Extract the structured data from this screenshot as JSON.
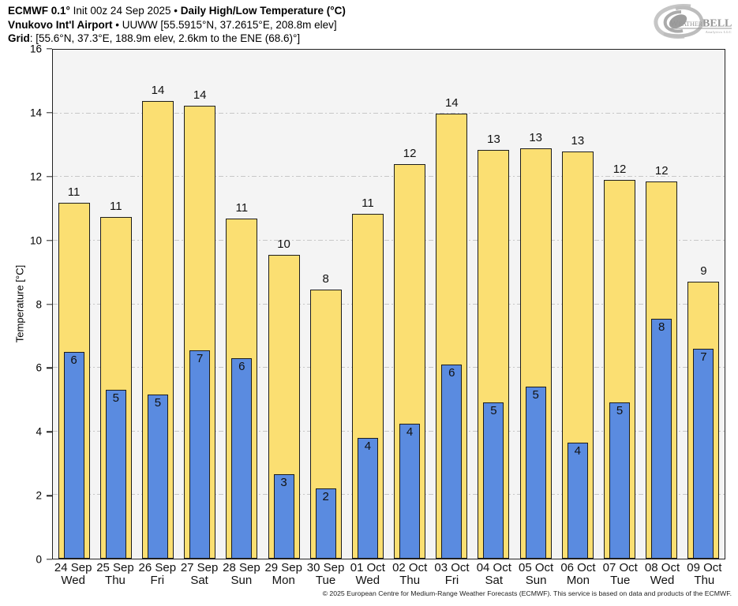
{
  "header": {
    "title_model": "ECMWF 0.1°",
    "title_mid": " Init 00z 24 Sep 2025 • ",
    "title_product": "Daily High/Low Temperature (°C)",
    "station_name": "Vnukovo Int'l Airport",
    "station_rest": " • UUWW [55.5915°N, 37.2615°E, 208.8m elev]",
    "grid_label": "Grid",
    "grid_rest": ": [55.6°N, 37.3°E, 188.9m elev, 2.6km to the ENE (68.6)°]"
  },
  "logo": {
    "weather": "Weather",
    "bell": "BELL",
    "sub": "Analytics LLC"
  },
  "footer": {
    "copyright": "© 2025 European Centre for Medium-Range Weather Forecasts (ECMWF). This service is based on data and products of the ECMWF."
  },
  "colors": {
    "high_fill": "#FBDF72",
    "low_fill": "#5A8BE0",
    "bar_border": "#1c1c1c",
    "plot_bg": "#f4f4f4",
    "gridline": "#c7c7c7"
  },
  "chart_data": {
    "type": "bar",
    "title": "Daily High/Low Temperature (°C)",
    "xlabel": "",
    "ylabel": "Temperature [°C]",
    "ylim": [
      0,
      16
    ],
    "yticks": [
      0,
      2,
      4,
      6,
      8,
      10,
      12,
      14,
      16
    ],
    "grid": "horizontal dash-dot at each y tick",
    "legend_position": "none",
    "categories": [
      {
        "date": "24 Sep",
        "day": "Wed"
      },
      {
        "date": "25 Sep",
        "day": "Thu"
      },
      {
        "date": "26 Sep",
        "day": "Fri"
      },
      {
        "date": "27 Sep",
        "day": "Sat"
      },
      {
        "date": "28 Sep",
        "day": "Sun"
      },
      {
        "date": "29 Sep",
        "day": "Mon"
      },
      {
        "date": "30 Sep",
        "day": "Tue"
      },
      {
        "date": "01 Oct",
        "day": "Wed"
      },
      {
        "date": "02 Oct",
        "day": "Thu"
      },
      {
        "date": "03 Oct",
        "day": "Fri"
      },
      {
        "date": "04 Oct",
        "day": "Sat"
      },
      {
        "date": "05 Oct",
        "day": "Sun"
      },
      {
        "date": "06 Oct",
        "day": "Mon"
      },
      {
        "date": "07 Oct",
        "day": "Tue"
      },
      {
        "date": "08 Oct",
        "day": "Wed"
      },
      {
        "date": "09 Oct",
        "day": "Thu"
      }
    ],
    "series": [
      {
        "name": "High",
        "color": "#FBDF72",
        "values": [
          11.2,
          10.75,
          14.4,
          14.25,
          10.7,
          9.55,
          8.45,
          10.85,
          12.4,
          14.0,
          12.85,
          12.9,
          12.8,
          11.9,
          11.85,
          8.7
        ],
        "labels": [
          "11",
          "11",
          "14",
          "14",
          "11",
          "10",
          "8",
          "11",
          "12",
          "14",
          "13",
          "13",
          "13",
          "12",
          "12",
          "9"
        ]
      },
      {
        "name": "Low",
        "color": "#5A8BE0",
        "values": [
          6.5,
          5.3,
          5.15,
          6.55,
          6.3,
          2.65,
          2.2,
          3.8,
          4.25,
          6.1,
          4.9,
          5.4,
          3.65,
          4.9,
          7.55,
          6.6
        ],
        "labels": [
          "6",
          "5",
          "5",
          "7",
          "6",
          "3",
          "2",
          "4",
          "4",
          "6",
          "5",
          "5",
          "4",
          "5",
          "8",
          "7"
        ]
      }
    ]
  }
}
